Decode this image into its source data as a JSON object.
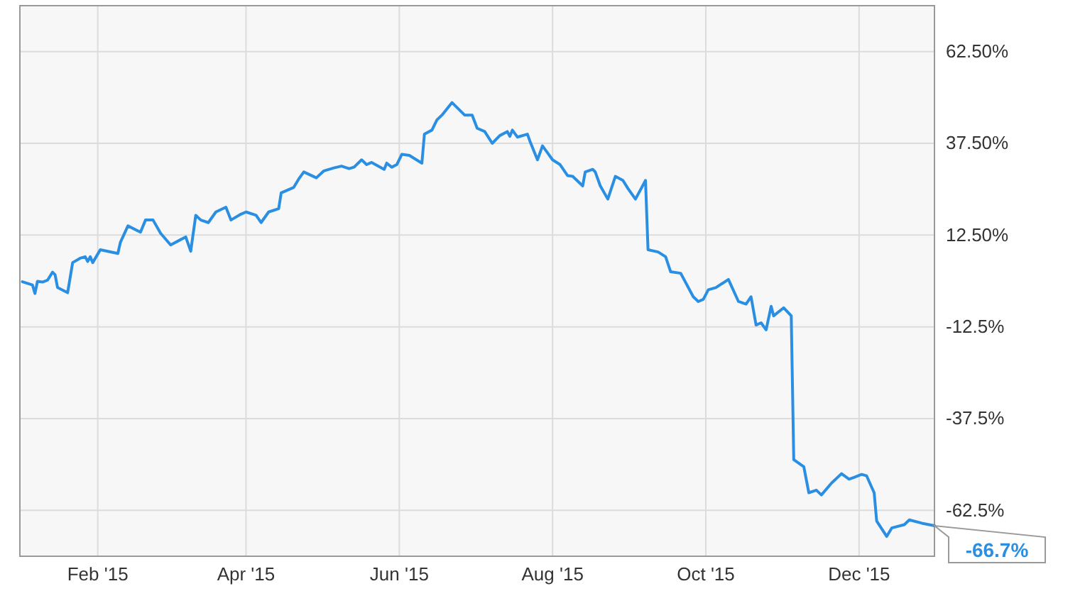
{
  "chart_data": {
    "type": "line",
    "x": [
      "2015-01-02",
      "2015-01-06",
      "2015-01-07",
      "2015-01-08",
      "2015-01-10",
      "2015-01-12",
      "2015-01-14",
      "2015-01-15",
      "2015-01-16",
      "2015-01-20",
      "2015-01-22",
      "2015-01-25",
      "2015-01-27",
      "2015-01-28",
      "2015-01-29",
      "2015-01-30",
      "2015-02-02",
      "2015-02-09",
      "2015-02-10",
      "2015-02-13",
      "2015-02-18",
      "2015-02-20",
      "2015-02-23",
      "2015-02-26",
      "2015-03-02",
      "2015-03-08",
      "2015-03-10",
      "2015-03-12",
      "2015-03-14",
      "2015-03-17",
      "2015-03-20",
      "2015-03-24",
      "2015-03-26",
      "2015-03-30",
      "2015-04-01",
      "2015-04-05",
      "2015-04-07",
      "2015-04-10",
      "2015-04-14",
      "2015-04-15",
      "2015-04-20",
      "2015-04-22",
      "2015-04-24",
      "2015-04-29",
      "2015-05-02",
      "2015-05-06",
      "2015-05-09",
      "2015-05-12",
      "2015-05-14",
      "2015-05-17",
      "2015-05-19",
      "2015-05-21",
      "2015-05-26",
      "2015-05-27",
      "2015-05-29",
      "2015-05-31",
      "2015-06-02",
      "2015-06-05",
      "2015-06-10",
      "2015-06-11",
      "2015-06-14",
      "2015-06-16",
      "2015-06-18",
      "2015-06-22",
      "2015-06-27",
      "2015-06-30",
      "2015-07-02",
      "2015-07-05",
      "2015-07-08",
      "2015-07-11",
      "2015-07-14",
      "2015-07-15",
      "2015-07-16",
      "2015-07-18",
      "2015-07-22",
      "2015-07-23",
      "2015-07-26",
      "2015-07-28",
      "2015-07-30",
      "2015-08-01",
      "2015-08-04",
      "2015-08-07",
      "2015-08-09",
      "2015-08-11",
      "2015-08-13",
      "2015-08-14",
      "2015-08-17",
      "2015-08-18",
      "2015-08-20",
      "2015-08-23",
      "2015-08-26",
      "2015-08-29",
      "2015-08-31",
      "2015-09-03",
      "2015-09-07",
      "2015-09-08",
      "2015-09-12",
      "2015-09-15",
      "2015-09-17",
      "2015-09-21",
      "2015-09-26",
      "2015-09-28",
      "2015-09-30",
      "2015-10-02",
      "2015-10-05",
      "2015-10-10",
      "2015-10-14",
      "2015-10-17",
      "2015-10-19",
      "2015-10-21",
      "2015-10-23",
      "2015-10-25",
      "2015-10-27",
      "2015-10-28",
      "2015-11-01",
      "2015-11-04",
      "2015-11-05",
      "2015-11-09",
      "2015-11-11",
      "2015-11-14",
      "2015-11-16",
      "2015-11-20",
      "2015-11-24",
      "2015-11-27",
      "2015-11-29",
      "2015-12-02",
      "2015-12-04",
      "2015-12-07",
      "2015-12-08",
      "2015-12-12",
      "2015-12-14",
      "2015-12-19",
      "2015-12-21",
      "2015-12-26",
      "2015-12-31"
    ],
    "series": [
      {
        "color": "#2a8fe3",
        "values": [
          -0.2,
          -1.1,
          -3.4,
          -0.1,
          -0.3,
          0.2,
          2.4,
          1.7,
          -1.8,
          -3.2,
          5.0,
          6.2,
          6.6,
          5.3,
          6.6,
          5.0,
          8.5,
          7.5,
          10.5,
          15.0,
          13.3,
          16.6,
          16.6,
          13.0,
          9.8,
          12.0,
          8.1,
          17.9,
          16.6,
          15.9,
          18.8,
          20.1,
          16.6,
          18.2,
          18.8,
          17.9,
          15.9,
          18.8,
          19.7,
          24.0,
          25.5,
          27.8,
          29.7,
          28.1,
          30.0,
          30.8,
          31.3,
          30.6,
          31.0,
          33.0,
          31.7,
          32.3,
          30.4,
          32.1,
          31.0,
          31.7,
          34.5,
          34.2,
          32.1,
          40.0,
          41.1,
          43.9,
          45.2,
          48.6,
          45.2,
          45.2,
          41.6,
          40.7,
          37.5,
          39.6,
          40.7,
          39.4,
          41.1,
          39.2,
          40.0,
          38.1,
          33.0,
          36.8,
          34.9,
          33.0,
          31.7,
          28.7,
          28.5,
          27.2,
          25.9,
          29.7,
          30.4,
          29.7,
          25.9,
          22.3,
          28.5,
          27.4,
          25.2,
          22.3,
          27.4,
          8.5,
          7.9,
          6.6,
          2.5,
          2.1,
          -4.3,
          -5.6,
          -5.0,
          -2.4,
          -1.8,
          0.4,
          -5.6,
          -6.3,
          -4.3,
          -12.0,
          -11.4,
          -13.3,
          -6.9,
          -9.5,
          -7.3,
          -9.5,
          -48.7,
          -50.6,
          -57.7,
          -57.0,
          -58.3,
          -55.1,
          -52.5,
          -54.0,
          -53.5,
          -52.7,
          -53.1,
          -57.7,
          -65.4,
          -69.6,
          -67.3,
          -66.4,
          -65.1,
          -66.0,
          -66.7
        ]
      }
    ],
    "xlim": [
      "2015-01-01",
      "2015-12-31"
    ],
    "xticks": [
      {
        "value": "2015-02-01",
        "label": "Feb '15"
      },
      {
        "value": "2015-04-01",
        "label": "Apr '15"
      },
      {
        "value": "2015-06-01",
        "label": "Jun '15"
      },
      {
        "value": "2015-08-01",
        "label": "Aug '15"
      },
      {
        "value": "2015-10-01",
        "label": "Oct '15"
      },
      {
        "value": "2015-12-01",
        "label": "Dec '15"
      }
    ],
    "ylim": [
      -75,
      75
    ],
    "yticks": [
      {
        "value": 62.5,
        "label": "62.50%"
      },
      {
        "value": 37.5,
        "label": "37.50%"
      },
      {
        "value": 12.5,
        "label": "12.50%"
      },
      {
        "value": -12.5,
        "label": "-12.5%"
      },
      {
        "value": -37.5,
        "label": "-37.5%"
      },
      {
        "value": -62.5,
        "label": "-62.5%"
      }
    ],
    "grid": true,
    "annotations": [
      {
        "text": "-66.7%",
        "x": "2015-12-31",
        "y": -66.7
      }
    ]
  }
}
